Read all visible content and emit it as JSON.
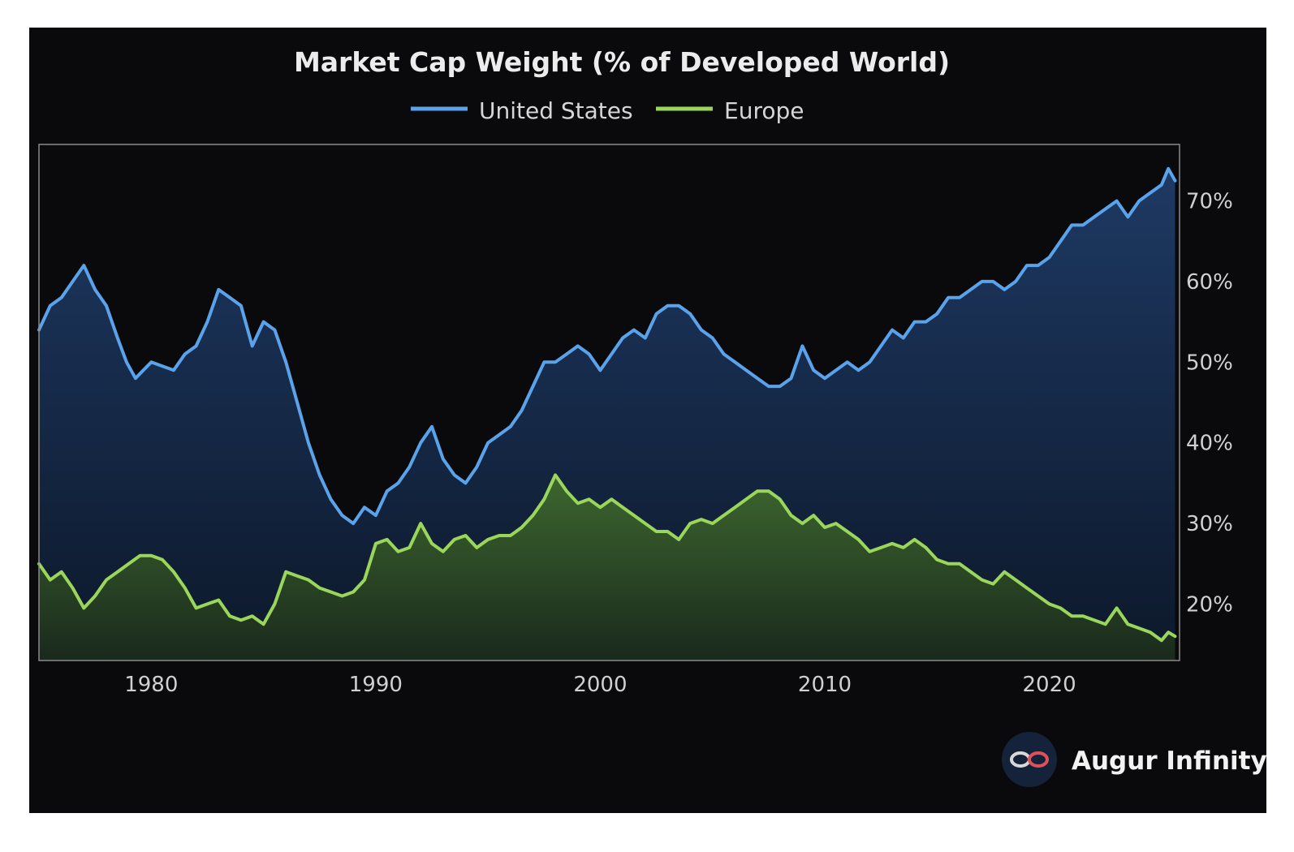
{
  "colors": {
    "background": "#0a0a0c",
    "us_line": "#5aa2ea",
    "europe_line": "#9ad65a",
    "plot_border": "#8a8a8a",
    "text": "#d0d0d0"
  },
  "brand": {
    "name": "Augur Infinity",
    "icon": "infinity-logo-icon"
  },
  "chart_data": {
    "type": "area",
    "title": "Market Cap Weight (% of Developed World)",
    "xlabel": "",
    "ylabel": "",
    "xlim": [
      1975,
      2025.8
    ],
    "ylim": [
      13,
      77
    ],
    "x_ticks": [
      1980,
      1990,
      2000,
      2010,
      2020
    ],
    "y_ticks": [
      20,
      30,
      40,
      50,
      60,
      70
    ],
    "y_tick_labels": [
      "20%",
      "30%",
      "40%",
      "50%",
      "60%",
      "70%"
    ],
    "y_axis_side": "right",
    "legend_position": "top-center",
    "series": [
      {
        "name": "United States",
        "color": "#5aa2ea",
        "x": [
          1975,
          1975.5,
          1976,
          1976.5,
          1977,
          1977.5,
          1978,
          1978.5,
          1978.9,
          1979.3,
          1980,
          1980.5,
          1981,
          1981.5,
          1982,
          1982.5,
          1983,
          1983.5,
          1984,
          1984.5,
          1985,
          1985.5,
          1986,
          1986.5,
          1987,
          1987.5,
          1988,
          1988.5,
          1989,
          1989.5,
          1990,
          1990.5,
          1991,
          1991.5,
          1992,
          1992.5,
          1993,
          1993.5,
          1994,
          1994.5,
          1995,
          1995.5,
          1996,
          1996.5,
          1997,
          1997.5,
          1998,
          1998.5,
          1999,
          1999.5,
          2000,
          2000.5,
          2001,
          2001.5,
          2002,
          2002.5,
          2003,
          2003.5,
          2004,
          2004.5,
          2005,
          2005.5,
          2006,
          2006.5,
          2007,
          2007.5,
          2008,
          2008.5,
          2009,
          2009.5,
          2010,
          2010.5,
          2011,
          2011.5,
          2012,
          2012.5,
          2013,
          2013.5,
          2014,
          2014.5,
          2015,
          2015.5,
          2016,
          2016.5,
          2017,
          2017.5,
          2018,
          2018.5,
          2019,
          2019.5,
          2020,
          2020.5,
          2021,
          2021.5,
          2022,
          2022.5,
          2023,
          2023.5,
          2024,
          2024.5,
          2025,
          2025.3,
          2025.6
        ],
        "values": [
          54,
          57,
          58,
          60,
          62,
          59,
          57,
          53,
          50,
          48,
          50,
          49.5,
          49,
          51,
          52,
          55,
          59,
          58,
          57,
          52,
          55,
          54,
          50,
          45,
          40,
          36,
          33,
          31,
          30,
          32,
          31,
          34,
          35,
          37,
          40,
          42,
          38,
          36,
          35,
          37,
          40,
          41,
          42,
          44,
          47,
          50,
          50,
          51,
          52,
          51,
          49,
          51,
          53,
          54,
          53,
          56,
          57,
          57,
          56,
          54,
          53,
          51,
          50,
          49,
          48,
          47,
          47,
          48,
          52,
          49,
          48,
          49,
          50,
          49,
          50,
          52,
          54,
          53,
          55,
          55,
          56,
          58,
          58,
          59,
          60,
          60,
          59,
          60,
          62,
          62,
          63,
          65,
          67,
          67,
          68,
          69,
          70,
          68,
          70,
          71,
          72,
          74,
          72.5
        ]
      },
      {
        "name": "Europe",
        "color": "#9ad65a",
        "x": [
          1975,
          1975.5,
          1976,
          1976.5,
          1977,
          1977.5,
          1978,
          1978.5,
          1979,
          1979.5,
          1980,
          1980.5,
          1981,
          1981.5,
          1982,
          1982.5,
          1983,
          1983.5,
          1984,
          1984.5,
          1985,
          1985.5,
          1986,
          1986.5,
          1987,
          1987.5,
          1988,
          1988.5,
          1989,
          1989.5,
          1990,
          1990.5,
          1991,
          1991.5,
          1992,
          1992.5,
          1993,
          1993.5,
          1994,
          1994.5,
          1995,
          1995.5,
          1996,
          1996.5,
          1997,
          1997.5,
          1998,
          1998.5,
          1999,
          1999.5,
          2000,
          2000.5,
          2001,
          2001.5,
          2002,
          2002.5,
          2003,
          2003.5,
          2004,
          2004.5,
          2005,
          2005.5,
          2006,
          2006.5,
          2007,
          2007.5,
          2008,
          2008.5,
          2009,
          2009.5,
          2010,
          2010.5,
          2011,
          2011.5,
          2012,
          2012.5,
          2013,
          2013.5,
          2014,
          2014.5,
          2015,
          2015.5,
          2016,
          2016.5,
          2017,
          2017.5,
          2018,
          2018.5,
          2019,
          2019.5,
          2020,
          2020.5,
          2021,
          2021.5,
          2022,
          2022.5,
          2023,
          2023.5,
          2024,
          2024.5,
          2025,
          2025.3,
          2025.6
        ],
        "values": [
          25,
          23,
          24,
          22,
          19.5,
          21,
          23,
          24,
          25,
          26,
          26,
          25.5,
          24,
          22,
          19.5,
          20,
          20.5,
          18.5,
          18,
          18.5,
          17.5,
          20,
          24,
          23.5,
          23,
          22,
          21.5,
          21,
          21.5,
          23,
          27.5,
          28,
          26.5,
          27,
          30,
          27.5,
          26.5,
          28,
          28.5,
          27,
          28,
          28.5,
          28.5,
          29.5,
          31,
          33,
          36,
          34,
          32.5,
          33,
          32,
          33,
          32,
          31,
          30,
          29,
          29,
          28,
          30,
          30.5,
          30,
          31,
          32,
          33,
          34,
          34,
          33,
          31,
          30,
          31,
          29.5,
          30,
          29,
          28,
          26.5,
          27,
          27.5,
          27,
          28,
          27,
          25.5,
          25,
          25,
          24,
          23,
          22.5,
          24,
          23,
          22,
          21,
          20,
          19.5,
          18.5,
          18.5,
          18,
          17.5,
          19.5,
          17.5,
          17,
          16.5,
          15.5,
          16.5,
          16
        ]
      }
    ]
  }
}
